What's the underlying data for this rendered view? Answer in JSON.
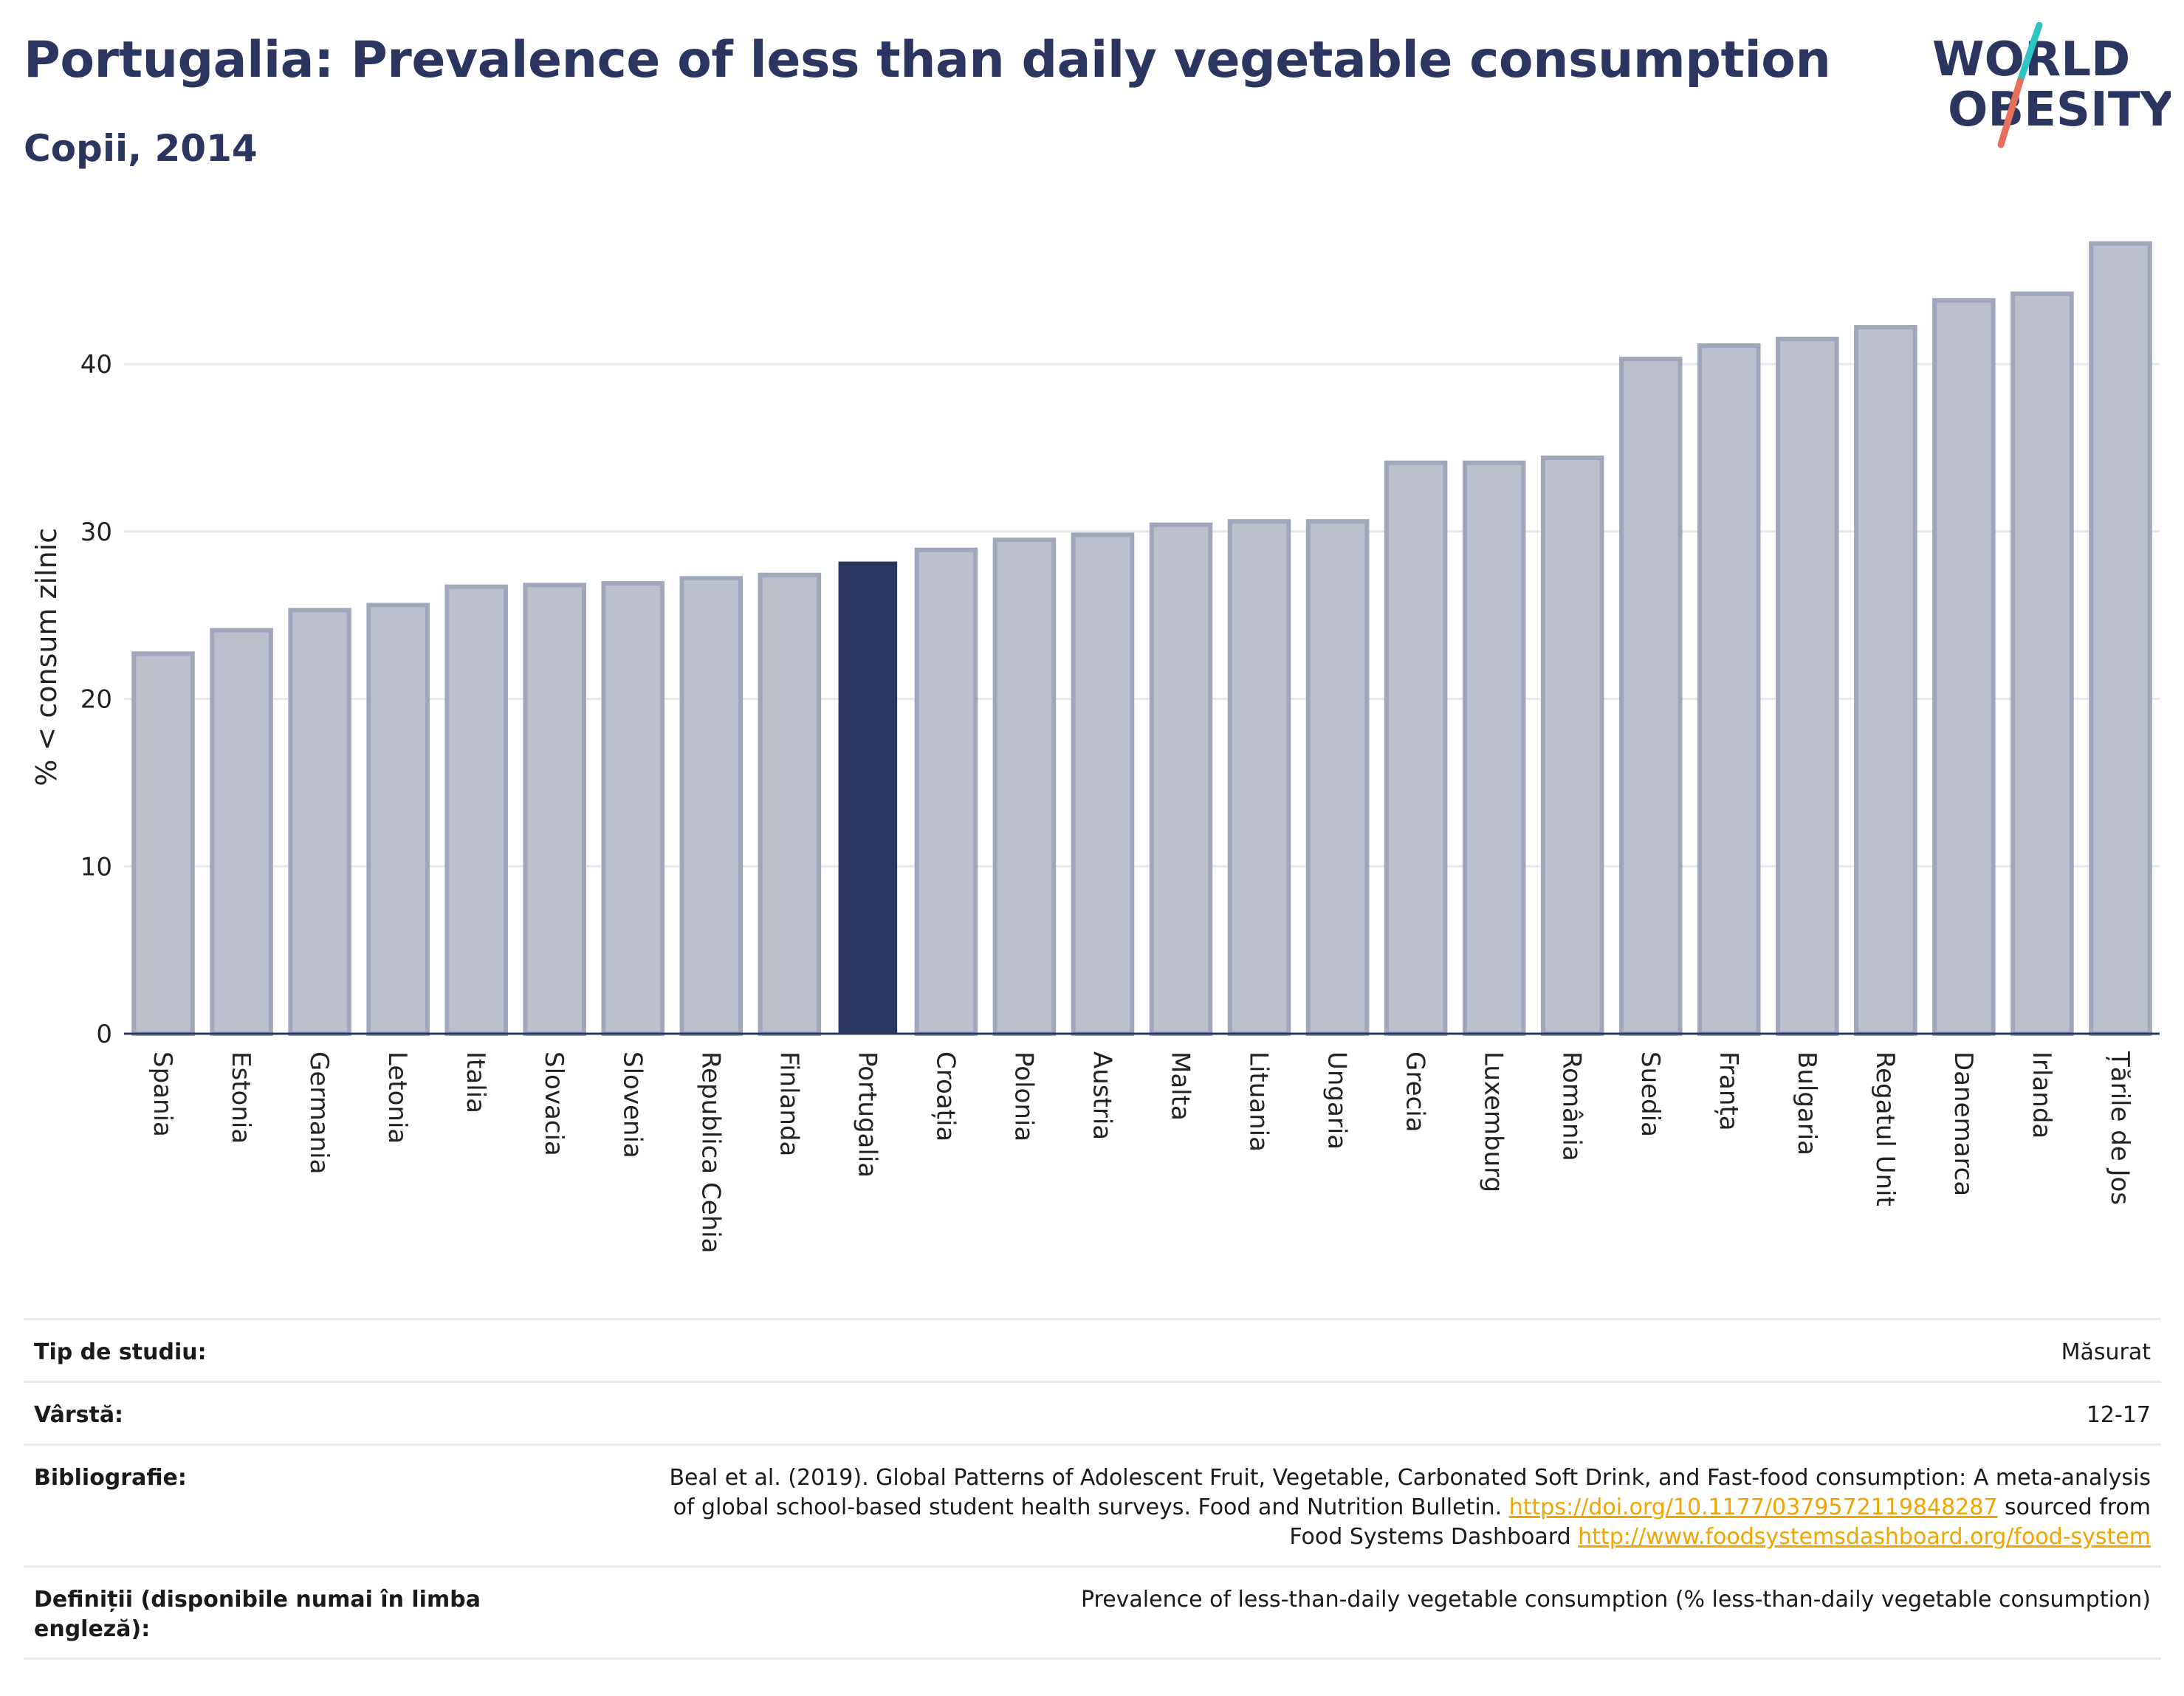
{
  "header": {
    "title": "Portugalia: Prevalence of less than daily vegetable consumption",
    "subtitle": "Copii, 2014"
  },
  "logo": {
    "line1": "WORLD",
    "line2": "OBESITY"
  },
  "colors": {
    "bar_default": "#bcc0cd",
    "bar_stroke": "#a0a6bb",
    "bar_highlight": "#2a3660",
    "title": "#2a3660",
    "grid": "#e6e8ee",
    "link": "#f0a500",
    "logo_teal": "#2ec4c4",
    "logo_red": "#e8705a"
  },
  "chart_data": {
    "type": "bar",
    "title": "",
    "xlabel": "",
    "ylabel": "% < consum zilnic",
    "ylim": [
      0,
      48
    ],
    "yticks": [
      0,
      10,
      20,
      30,
      40
    ],
    "grid": true,
    "highlight": "Portugalia",
    "categories": [
      "Spania",
      "Estonia",
      "Germania",
      "Letonia",
      "Italia",
      "Slovacia",
      "Slovenia",
      "Republica Cehia",
      "Finlanda",
      "Portugalia",
      "Croația",
      "Polonia",
      "Austria",
      "Malta",
      "Lituania",
      "Ungaria",
      "Grecia",
      "Luxemburg",
      "România",
      "Suedia",
      "Franța",
      "Bulgaria",
      "Regatul Unit",
      "Danemarca",
      "Irlanda",
      "Țările de Jos"
    ],
    "values": [
      22.7,
      24.1,
      25.3,
      25.6,
      26.7,
      26.8,
      26.9,
      27.2,
      27.4,
      28.2,
      28.9,
      29.5,
      29.8,
      30.4,
      30.6,
      30.6,
      34.1,
      34.1,
      34.4,
      40.3,
      41.1,
      41.5,
      42.2,
      43.8,
      44.2,
      47.2
    ]
  },
  "meta": {
    "rows": [
      {
        "label": "Tip de studiu:",
        "value": "Măsurat"
      },
      {
        "label": "Vârstă:",
        "value": "12-17"
      },
      {
        "label": "Bibliografie:",
        "value_line1": "Beal et al. (2019). Global Patterns of Adolescent Fruit, Vegetable, Carbonated Soft Drink, and Fast-food consumption: A meta-analysis",
        "value_line2_pre": "of global school-based student health surveys. Food and Nutrition Bulletin. ",
        "link1": "https://doi.org/10.1177/0379572119848287",
        "value_line2_post": " sourced from",
        "value_line3_pre": "Food Systems Dashboard ",
        "link2": "http://www.foodsystemsdashboard.org/food-system"
      },
      {
        "label": "Definiții (disponibile numai în limba engleză):",
        "value": "Prevalence of less-than-daily vegetable consumption (% less-than-daily vegetable consumption)"
      }
    ]
  }
}
